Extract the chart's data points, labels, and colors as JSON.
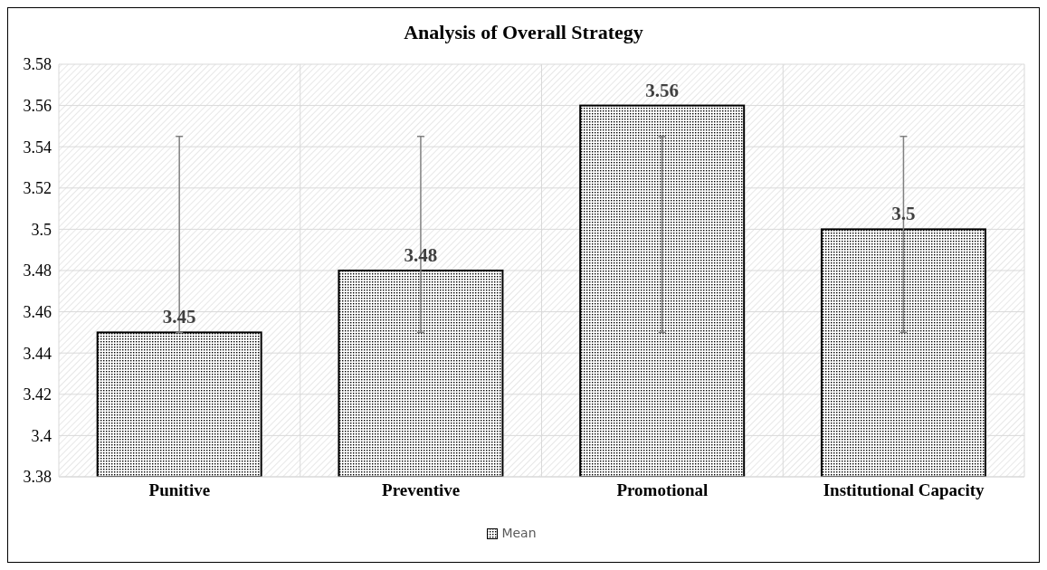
{
  "chart_data": {
    "type": "bar",
    "title": "Analysis of Overall Strategy",
    "categories": [
      "Punitive",
      "Preventive",
      "Promotional",
      "Institutional Capacity"
    ],
    "series": [
      {
        "name": "Mean",
        "color": "#000000",
        "values": [
          3.45,
          3.48,
          3.56,
          3.5
        ],
        "errors": [
          [
            3.45,
            3.545
          ],
          [
            3.45,
            3.545
          ],
          [
            3.45,
            3.545
          ],
          [
            3.45,
            3.545
          ]
        ]
      }
    ],
    "ylim": [
      3.38,
      3.58
    ],
    "yticks": [
      3.38,
      3.4,
      3.42,
      3.44,
      3.46,
      3.48,
      3.5,
      3.52,
      3.54,
      3.56,
      3.58
    ],
    "grid": true,
    "legend": "bottom",
    "data_labels": true
  }
}
